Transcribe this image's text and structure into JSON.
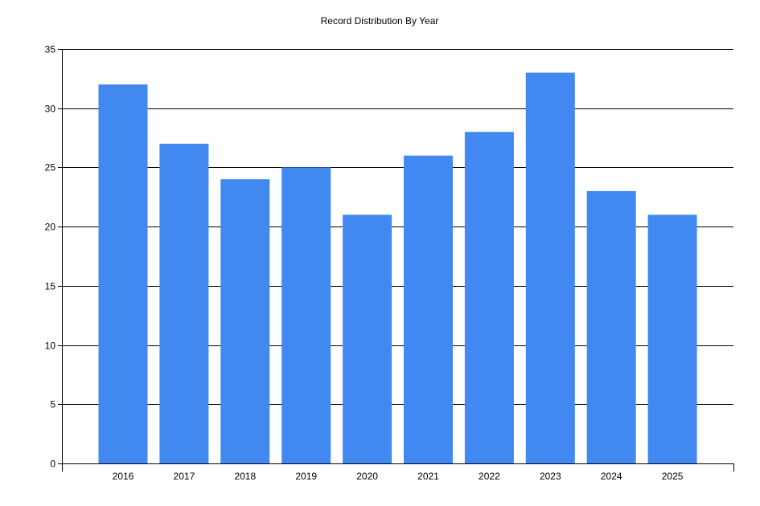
{
  "chart_data": {
    "type": "bar",
    "title": "Record Distribution By Year",
    "xlabel": "",
    "ylabel": "",
    "categories": [
      "2016",
      "2017",
      "2018",
      "2019",
      "2020",
      "2021",
      "2022",
      "2023",
      "2024",
      "2025"
    ],
    "values": [
      32,
      27,
      24,
      25,
      21,
      26,
      28,
      33,
      23,
      21
    ],
    "ylim": [
      0,
      35
    ],
    "yticks": [
      0,
      5,
      10,
      15,
      20,
      25,
      30,
      35
    ],
    "grid": true,
    "legend": "none",
    "bar_color": "#4189F0"
  }
}
